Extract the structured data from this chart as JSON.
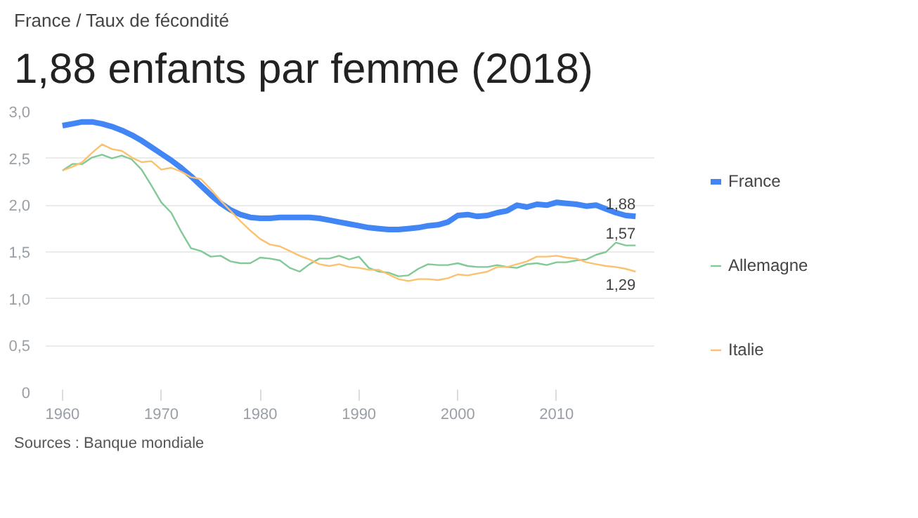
{
  "chart_data": {
    "type": "line",
    "subtitle": "France / Taux de fécondité",
    "title": "1,88 enfants par femme (2018)",
    "annotations": [
      "Sources : Banque mondiale"
    ],
    "x": [
      1960,
      1961,
      1962,
      1963,
      1964,
      1965,
      1966,
      1967,
      1968,
      1969,
      1970,
      1971,
      1972,
      1973,
      1974,
      1975,
      1976,
      1977,
      1978,
      1979,
      1980,
      1981,
      1982,
      1983,
      1984,
      1985,
      1986,
      1987,
      1988,
      1989,
      1990,
      1991,
      1992,
      1993,
      1994,
      1995,
      1996,
      1997,
      1998,
      1999,
      2000,
      2001,
      2002,
      2003,
      2004,
      2005,
      2006,
      2007,
      2008,
      2009,
      2010,
      2011,
      2012,
      2013,
      2014,
      2015,
      2016,
      2017,
      2018
    ],
    "series": [
      {
        "name": "France",
        "color": "#4285f4",
        "values": [
          2.85,
          2.87,
          2.89,
          2.89,
          2.87,
          2.84,
          2.8,
          2.75,
          2.69,
          2.62,
          2.55,
          2.48,
          2.4,
          2.31,
          2.21,
          2.11,
          2.02,
          1.95,
          1.9,
          1.87,
          1.86,
          1.86,
          1.87,
          1.87,
          1.87,
          1.87,
          1.86,
          1.84,
          1.82,
          1.8,
          1.78,
          1.76,
          1.75,
          1.74,
          1.74,
          1.75,
          1.76,
          1.78,
          1.79,
          1.82,
          1.89,
          1.9,
          1.88,
          1.89,
          1.92,
          1.94,
          2.0,
          1.98,
          2.01,
          2.0,
          2.03,
          2.02,
          2.01,
          1.99,
          2.0,
          1.96,
          1.92,
          1.89,
          1.88
        ],
        "value_labels": [
          null,
          null,
          null,
          null,
          null,
          null,
          null,
          null,
          null,
          null,
          null,
          null,
          null,
          null,
          null,
          null,
          null,
          null,
          null,
          null,
          null,
          null,
          null,
          null,
          null,
          null,
          null,
          null,
          null,
          null,
          null,
          null,
          null,
          null,
          null,
          null,
          null,
          null,
          null,
          null,
          null,
          null,
          null,
          null,
          null,
          null,
          null,
          null,
          null,
          null,
          null,
          null,
          null,
          null,
          null,
          null,
          null,
          null,
          "1,88"
        ]
      },
      {
        "name": "Allemagne",
        "color": "#81c995",
        "values": [
          2.37,
          2.44,
          2.44,
          2.51,
          2.54,
          2.5,
          2.53,
          2.49,
          2.38,
          2.21,
          2.03,
          1.92,
          1.72,
          1.54,
          1.51,
          1.45,
          1.46,
          1.4,
          1.38,
          1.38,
          1.44,
          1.43,
          1.41,
          1.33,
          1.29,
          1.37,
          1.43,
          1.43,
          1.46,
          1.42,
          1.45,
          1.33,
          1.29,
          1.28,
          1.24,
          1.25,
          1.32,
          1.37,
          1.36,
          1.36,
          1.38,
          1.35,
          1.34,
          1.34,
          1.36,
          1.34,
          1.33,
          1.37,
          1.38,
          1.36,
          1.39,
          1.39,
          1.41,
          1.42,
          1.47,
          1.5,
          1.6,
          1.57,
          1.57
        ],
        "value_labels": [
          null,
          null,
          null,
          null,
          null,
          null,
          null,
          null,
          null,
          null,
          null,
          null,
          null,
          null,
          null,
          null,
          null,
          null,
          null,
          null,
          null,
          null,
          null,
          null,
          null,
          null,
          null,
          null,
          null,
          null,
          null,
          null,
          null,
          null,
          null,
          null,
          null,
          null,
          null,
          null,
          null,
          null,
          null,
          null,
          null,
          null,
          null,
          null,
          null,
          null,
          null,
          null,
          null,
          null,
          null,
          null,
          null,
          null,
          "1,57"
        ]
      },
      {
        "name": "Italie",
        "color": "#fbc16e",
        "values": [
          2.37,
          2.41,
          2.46,
          2.56,
          2.65,
          2.6,
          2.58,
          2.51,
          2.46,
          2.47,
          2.38,
          2.4,
          2.36,
          2.3,
          2.28,
          2.17,
          2.05,
          1.94,
          1.83,
          1.73,
          1.64,
          1.58,
          1.56,
          1.51,
          1.46,
          1.42,
          1.37,
          1.35,
          1.37,
          1.34,
          1.33,
          1.31,
          1.31,
          1.26,
          1.21,
          1.19,
          1.21,
          1.21,
          1.2,
          1.22,
          1.26,
          1.25,
          1.27,
          1.29,
          1.34,
          1.34,
          1.37,
          1.4,
          1.45,
          1.45,
          1.46,
          1.44,
          1.43,
          1.39,
          1.37,
          1.35,
          1.34,
          1.32,
          1.29
        ],
        "value_labels": [
          null,
          null,
          null,
          null,
          null,
          null,
          null,
          null,
          null,
          null,
          null,
          null,
          null,
          null,
          null,
          null,
          null,
          null,
          null,
          null,
          null,
          null,
          null,
          null,
          null,
          null,
          null,
          null,
          null,
          null,
          null,
          null,
          null,
          null,
          null,
          null,
          null,
          null,
          null,
          null,
          null,
          null,
          null,
          null,
          null,
          null,
          null,
          null,
          null,
          null,
          null,
          null,
          null,
          null,
          null,
          null,
          null,
          null,
          "1,29"
        ]
      }
    ],
    "xlim": [
      1958.3,
      2019.9
    ],
    "xticks": [
      1960,
      1970,
      1980,
      1990,
      2000,
      2010
    ],
    "ylim": [
      0,
      3.0
    ],
    "yticks": [
      0,
      {
        "value": 0.5,
        "label": "0,5"
      },
      {
        "value": 1.0,
        "label": "1,0"
      },
      {
        "value": 1.5,
        "label": "1,5"
      },
      {
        "value": 2.0,
        "label": "2,0"
      },
      {
        "value": 2.5,
        "label": "2,5"
      },
      {
        "value": 3.0,
        "label": "3,0"
      }
    ],
    "grid": "y",
    "legend": "right"
  }
}
